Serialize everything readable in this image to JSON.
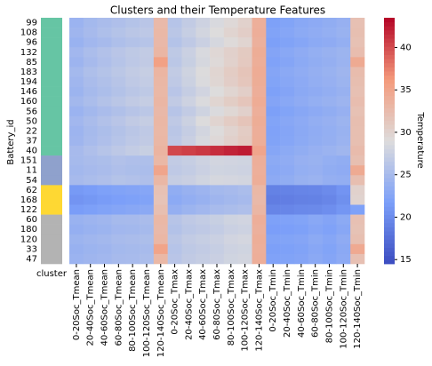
{
  "chart_data": {
    "type": "heatmap",
    "title": "Clusters and their Temperature Features",
    "ylabel": "Battery_id",
    "cluster_label": "cluster",
    "colorbar_label": "Temperature",
    "columns": [
      "0-20Soc_Tmean",
      "20-40Soc_Tmean",
      "40-60Soc_Tmean",
      "60-80Soc_Tmean",
      "80-100Soc_Tmean",
      "100-120Soc_Tmean",
      "120-140Soc_Tmean",
      "0-20Soc_Tmax",
      "20-40Soc_Tmax",
      "40-60Soc_Tmax",
      "60-80Soc_Tmax",
      "80-100Soc_Tmax",
      "100-120Soc_Tmax",
      "120-140Soc_Tmax",
      "0-20Soc_Tmin",
      "20-40Soc_Tmin",
      "40-60Soc_Tmin",
      "60-80Soc_Tmin",
      "80-100Soc_Tmin",
      "100-120Soc_Tmin",
      "120-140Soc_Tmin"
    ],
    "rows": [
      "99",
      "108",
      "96",
      "132",
      "85",
      "183",
      "194",
      "146",
      "160",
      "56",
      "50",
      "22",
      "37",
      "40",
      "151",
      "11",
      "54",
      "62",
      "168",
      "122",
      "60",
      "180",
      "120",
      "33",
      "47"
    ],
    "clusters": [
      0,
      0,
      0,
      0,
      0,
      0,
      0,
      0,
      0,
      0,
      0,
      0,
      0,
      0,
      1,
      1,
      1,
      2,
      2,
      2,
      3,
      3,
      3,
      3,
      3
    ],
    "cluster_colors": [
      "#66c5a4",
      "#8fa1cc",
      "#fed833",
      "#b3b3b3"
    ],
    "values": [
      [
        24.1,
        24.8,
        25.2,
        25.6,
        26.0,
        26.3,
        32.8,
        26.1,
        27.0,
        27.8,
        28.6,
        29.4,
        30.2,
        33.9,
        22.0,
        22.3,
        22.8,
        23.1,
        23.4,
        23.8,
        32.1
      ],
      [
        24.4,
        25.0,
        25.5,
        26.0,
        26.4,
        26.6,
        33.0,
        26.4,
        27.3,
        28.2,
        29.0,
        29.9,
        30.6,
        34.0,
        22.2,
        22.6,
        23.0,
        23.3,
        23.6,
        24.0,
        32.2
      ],
      [
        24.0,
        24.6,
        25.0,
        25.5,
        25.9,
        26.1,
        32.9,
        26.0,
        26.8,
        27.6,
        28.4,
        29.2,
        29.9,
        33.8,
        21.9,
        22.2,
        22.6,
        23.0,
        23.2,
        23.6,
        32.0
      ],
      [
        24.6,
        25.3,
        25.8,
        26.3,
        26.7,
        27.0,
        33.2,
        26.7,
        27.6,
        28.6,
        29.5,
        30.3,
        31.0,
        34.2,
        22.4,
        22.8,
        23.2,
        23.6,
        23.9,
        24.2,
        32.4
      ],
      [
        24.3,
        25.0,
        25.6,
        26.1,
        26.6,
        26.9,
        35.5,
        26.5,
        27.4,
        28.4,
        29.3,
        30.2,
        31.1,
        34.1,
        22.1,
        22.5,
        23.0,
        23.4,
        23.7,
        24.1,
        34.5
      ],
      [
        24.8,
        25.5,
        26.0,
        26.5,
        27.0,
        27.3,
        33.3,
        27.0,
        27.9,
        28.9,
        29.8,
        30.8,
        31.6,
        34.3,
        22.5,
        22.9,
        23.3,
        23.7,
        24.0,
        24.4,
        32.5
      ],
      [
        24.5,
        25.2,
        25.7,
        26.2,
        26.8,
        27.1,
        33.1,
        26.8,
        27.7,
        28.8,
        29.7,
        30.6,
        31.4,
        34.2,
        22.3,
        22.7,
        23.1,
        23.5,
        23.8,
        24.2,
        32.3
      ],
      [
        24.2,
        24.9,
        25.4,
        25.9,
        26.4,
        26.7,
        33.0,
        26.3,
        27.2,
        28.1,
        29.0,
        29.8,
        30.5,
        34.0,
        22.0,
        22.4,
        22.9,
        23.2,
        23.5,
        23.9,
        32.1
      ],
      [
        24.7,
        25.3,
        25.9,
        26.4,
        26.9,
        27.2,
        33.2,
        26.9,
        27.8,
        28.8,
        29.8,
        30.7,
        31.5,
        34.3,
        22.4,
        22.8,
        23.2,
        23.6,
        23.9,
        24.3,
        32.4
      ],
      [
        24.1,
        24.7,
        25.2,
        25.7,
        26.2,
        26.5,
        32.9,
        26.2,
        27.0,
        27.9,
        28.8,
        29.6,
        30.3,
        33.9,
        21.9,
        22.3,
        22.7,
        23.1,
        23.4,
        23.8,
        32.0
      ],
      [
        24.6,
        25.2,
        25.8,
        26.3,
        26.9,
        27.2,
        33.1,
        26.8,
        27.7,
        28.9,
        29.9,
        30.8,
        31.6,
        34.2,
        22.3,
        22.7,
        23.1,
        23.5,
        23.8,
        24.2,
        32.3
      ],
      [
        24.3,
        24.9,
        25.4,
        25.9,
        26.4,
        26.8,
        33.0,
        26.4,
        27.2,
        28.2,
        29.1,
        30.0,
        30.8,
        34.0,
        22.1,
        22.5,
        22.9,
        23.3,
        23.6,
        24.0,
        32.2
      ],
      [
        24.4,
        25.1,
        25.6,
        26.1,
        26.6,
        26.9,
        33.1,
        26.6,
        27.5,
        28.5,
        29.4,
        30.3,
        31.0,
        34.1,
        22.2,
        22.6,
        23.0,
        23.4,
        23.7,
        24.1,
        32.2
      ],
      [
        25.0,
        25.6,
        26.1,
        26.6,
        27.1,
        27.4,
        33.4,
        40.2,
        40.6,
        41.0,
        41.5,
        42.0,
        42.4,
        35.0,
        22.6,
        23.0,
        23.4,
        23.8,
        24.1,
        24.5,
        32.6
      ],
      [
        24.9,
        25.2,
        25.4,
        25.8,
        25.6,
        25.5,
        33.0,
        27.0,
        27.3,
        27.8,
        28.2,
        28.1,
        28.0,
        34.0,
        23.0,
        23.3,
        23.8,
        24.0,
        23.6,
        23.4,
        32.2
      ],
      [
        24.7,
        25.0,
        25.2,
        25.6,
        25.4,
        25.3,
        35.0,
        26.8,
        27.1,
        27.6,
        28.0,
        27.9,
        27.8,
        33.9,
        22.8,
        23.1,
        23.6,
        23.8,
        23.4,
        23.2,
        34.5
      ],
      [
        25.0,
        25.3,
        25.6,
        26.0,
        25.8,
        25.6,
        33.1,
        27.2,
        27.5,
        28.0,
        28.4,
        28.3,
        28.2,
        34.1,
        23.1,
        23.4,
        23.9,
        24.1,
        23.7,
        23.5,
        32.3
      ],
      [
        21.3,
        21.6,
        22.0,
        22.2,
        22.4,
        22.6,
        32.0,
        23.4,
        23.9,
        24.3,
        24.8,
        25.0,
        25.3,
        33.0,
        19.2,
        19.3,
        19.5,
        19.6,
        20.0,
        20.8,
        30.2
      ],
      [
        20.8,
        21.1,
        21.5,
        21.8,
        22.0,
        22.2,
        31.8,
        23.0,
        23.5,
        23.9,
        24.4,
        24.7,
        25.0,
        32.8,
        18.8,
        18.9,
        19.1,
        19.2,
        19.6,
        20.4,
        30.0
      ],
      [
        21.6,
        21.9,
        22.2,
        22.5,
        22.7,
        22.9,
        32.2,
        23.7,
        24.2,
        24.6,
        25.1,
        25.3,
        25.6,
        33.2,
        19.5,
        19.6,
        19.8,
        19.9,
        20.3,
        21.0,
        22.0
      ],
      [
        24.0,
        24.3,
        24.5,
        24.9,
        25.0,
        25.2,
        33.0,
        26.2,
        26.8,
        27.1,
        27.4,
        27.9,
        28.1,
        34.0,
        22.0,
        22.1,
        22.3,
        22.8,
        22.4,
        23.0,
        32.1
      ],
      [
        23.7,
        24.0,
        24.2,
        24.6,
        24.7,
        24.9,
        32.8,
        25.9,
        26.5,
        26.8,
        27.1,
        27.6,
        27.8,
        33.8,
        21.7,
        21.8,
        22.0,
        22.5,
        22.1,
        22.7,
        31.9
      ],
      [
        24.2,
        24.5,
        24.7,
        25.1,
        25.2,
        25.4,
        33.1,
        26.4,
        27.0,
        27.3,
        27.6,
        28.1,
        28.3,
        34.1,
        22.2,
        22.3,
        22.5,
        23.0,
        22.6,
        23.2,
        32.2
      ],
      [
        23.9,
        24.2,
        24.4,
        24.8,
        24.9,
        25.1,
        35.2,
        26.1,
        26.7,
        27.0,
        27.3,
        27.8,
        28.0,
        33.9,
        21.9,
        22.0,
        22.2,
        22.7,
        22.3,
        22.9,
        34.6
      ],
      [
        24.1,
        24.4,
        24.6,
        25.0,
        25.1,
        25.3,
        33.0,
        26.3,
        26.9,
        27.2,
        27.5,
        28.0,
        28.2,
        34.0,
        22.1,
        22.2,
        22.4,
        22.9,
        22.5,
        23.1,
        32.1
      ]
    ],
    "vlim": [
      14.5,
      43.5
    ],
    "cticks": [
      15,
      20,
      25,
      30,
      35,
      40
    ],
    "colormap": [
      "#3b4cc0",
      "#7b9ff9",
      "#dddcdc",
      "#f49a7b",
      "#b40426"
    ]
  }
}
